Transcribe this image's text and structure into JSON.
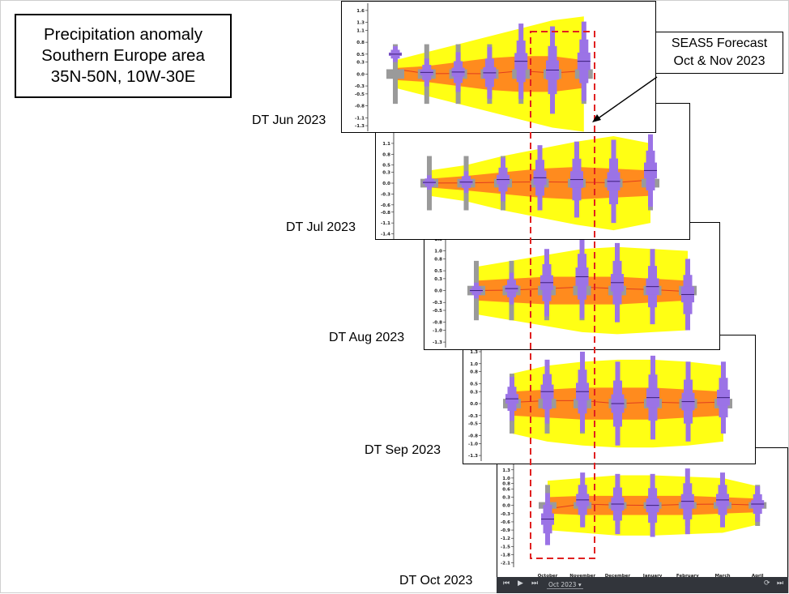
{
  "title_lines": [
    "Precipitation anomaly",
    "Southern Europe area",
    "35N-50N, 10W-30E"
  ],
  "annotation": {
    "lines": [
      "SEAS5 Forecast",
      "Oct & Nov 2023"
    ]
  },
  "colors": {
    "outer_band": "#ffff14",
    "inner_band": "#ff8b1e",
    "model_box": "#9b73e6",
    "climate_box": "#9a9a9a",
    "median_line": "#e03c1e",
    "highlight": "#e02020"
  },
  "playback": {
    "selected_date": "Oct 2023",
    "icons": [
      "skip-start-icon",
      "play-icon",
      "skip-end-icon",
      "refresh-icon",
      "skip-next-icon"
    ]
  },
  "chart_data": [
    {
      "type": "box",
      "label": "DT Jun 2023",
      "y_ticks": [
        "1.6",
        "1.3",
        "1.1",
        "0.8",
        "0.5",
        "0.3",
        "0.0",
        "-0.3",
        "-0.5",
        "-0.8",
        "-1.1",
        "-1.3"
      ],
      "y_range": [
        -1.4,
        1.7
      ],
      "medians": [
        0.5,
        0.04,
        0.05,
        0.03,
        0.32,
        0.1,
        0.32
      ],
      "spread": [
        0.2,
        0.35,
        0.5,
        0.65,
        0.95,
        1.1,
        1.0
      ],
      "band_outer": [
        0.35,
        0.55,
        0.75,
        0.95,
        1.15,
        1.35,
        1.45
      ],
      "band_inner": [
        0.15,
        0.2,
        0.3,
        0.4,
        0.45,
        0.45,
        0.35
      ]
    },
    {
      "type": "box",
      "label": "DT Jul 2023",
      "y_ticks": [
        "1.1",
        "0.8",
        "0.5",
        "0.3",
        "0.0",
        "-0.3",
        "-0.6",
        "-0.8",
        "-1.1",
        "-1.4"
      ],
      "y_range": [
        -1.5,
        1.3
      ],
      "medians": [
        0.02,
        0.03,
        0.1,
        0.15,
        0.1,
        0.05,
        0.35
      ],
      "spread": [
        0.2,
        0.3,
        0.6,
        0.9,
        1.05,
        1.15,
        1.0
      ],
      "band_outer": [
        0.35,
        0.5,
        0.75,
        0.95,
        1.15,
        1.3,
        1.1
      ],
      "band_inner": [
        0.12,
        0.2,
        0.3,
        0.4,
        0.45,
        0.4,
        0.35
      ]
    },
    {
      "type": "box",
      "label": "DT Aug 2023",
      "y_ticks": [
        "1.3",
        "1.0",
        "0.8",
        "0.5",
        "0.3",
        "0.0",
        "-0.3",
        "-0.5",
        "-0.8",
        "-1.0",
        "-1.3"
      ],
      "y_range": [
        -1.4,
        1.3
      ],
      "medians": [
        0.0,
        0.05,
        0.2,
        0.35,
        0.2,
        0.1,
        -0.1
      ],
      "spread": [
        0.2,
        0.4,
        0.85,
        1.05,
        1.0,
        0.95,
        0.9
      ],
      "band_outer": [
        0.6,
        0.75,
        0.9,
        1.05,
        1.1,
        1.05,
        1.0
      ],
      "band_inner": [
        0.25,
        0.3,
        0.35,
        0.35,
        0.35,
        0.3,
        0.25
      ]
    },
    {
      "type": "box",
      "label": "DT Sep 2023",
      "y_ticks": [
        "1.3",
        "1.0",
        "0.8",
        "0.5",
        "0.3",
        "0.0",
        "-0.3",
        "-0.5",
        "-0.8",
        "-1.0",
        "-1.3"
      ],
      "y_range": [
        -1.4,
        1.3
      ],
      "medians": [
        0.12,
        0.3,
        0.3,
        0.0,
        0.15,
        0.05,
        0.15
      ],
      "spread": [
        0.55,
        0.8,
        1.0,
        1.05,
        1.05,
        1.0,
        0.9
      ],
      "band_outer": [
        0.75,
        0.95,
        1.05,
        1.1,
        1.1,
        1.05,
        0.95
      ],
      "band_inner": [
        0.3,
        0.35,
        0.4,
        0.4,
        0.4,
        0.35,
        0.3
      ]
    },
    {
      "type": "box",
      "label": "DT Oct 2023",
      "x_categories": [
        "October",
        "November",
        "December",
        "January",
        "February",
        "March",
        "April"
      ],
      "y_ticks": [
        "1.3",
        "1.0",
        "0.8",
        "0.6",
        "0.3",
        "0.0",
        "-0.3",
        "-0.6",
        "-0.9",
        "-1.2",
        "-1.5",
        "-1.8",
        "-2.1"
      ],
      "y_range": [
        -2.2,
        1.5
      ],
      "medians": [
        -0.5,
        0.2,
        0.05,
        0.0,
        0.15,
        0.2,
        0.05
      ],
      "spread": [
        0.95,
        1.0,
        1.1,
        1.15,
        1.2,
        1.0,
        0.65
      ],
      "band_outer": [
        0.9,
        1.0,
        1.1,
        1.1,
        1.05,
        1.0,
        0.7
      ],
      "band_inner": [
        0.3,
        0.35,
        0.35,
        0.35,
        0.35,
        0.3,
        0.25
      ]
    }
  ]
}
